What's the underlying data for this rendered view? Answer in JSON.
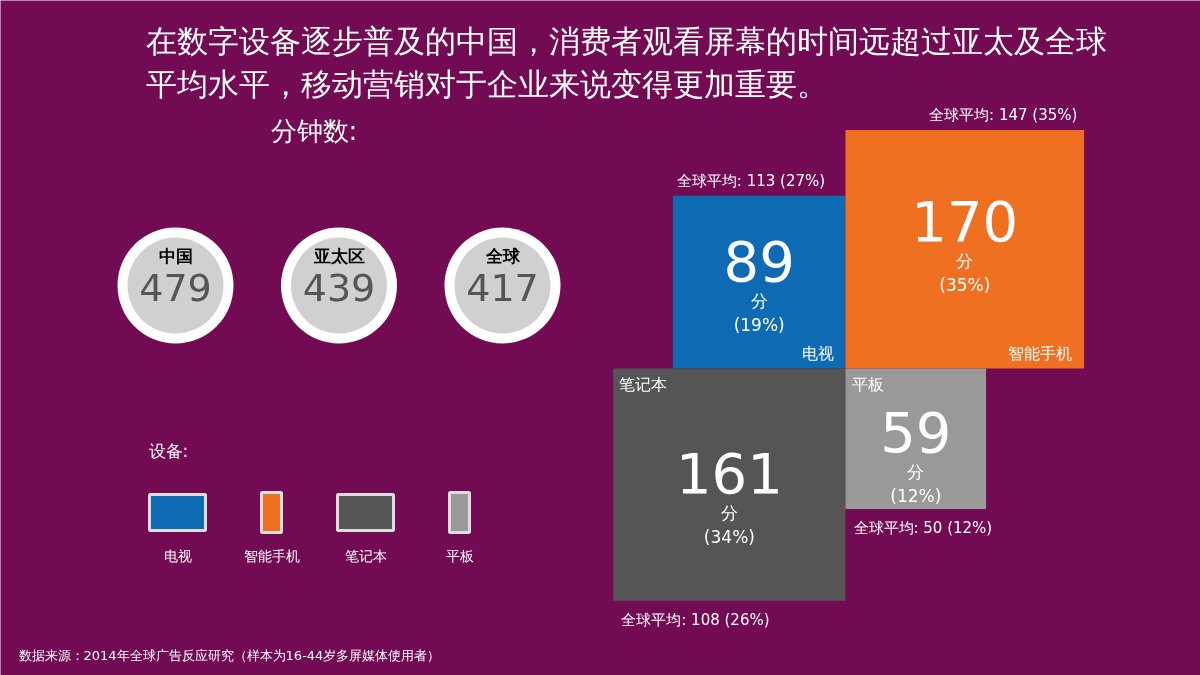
{
  "chart_data": [
    {
      "type": "other",
      "title": "在数字设备逐步普及的中国，消费者观看屏幕的时间远超过亚太及全球平均水平，移动营销对于企业来说变得更加重要。",
      "subtitle": "分钟数:",
      "categories": [
        "中国",
        "亚太区",
        "全球"
      ],
      "values": [
        479,
        439,
        417
      ],
      "data_labels": true
    },
    {
      "type": "other",
      "categories": [
        "电视",
        "智能手机",
        "笔记本",
        "平板"
      ],
      "values": [
        89,
        170,
        161,
        59
      ],
      "value_labels": [
        "89\n分\n(19%)",
        "170\n分\n(35%)",
        "161\n分\n(34%)",
        "59\n分\n(12%)"
      ],
      "colors": [
        "#0f6ab4",
        "#f07022",
        "#555555",
        "#999999"
      ],
      "legend_title": "设备:",
      "annotations": [
        "全球平均:  113 (27%)",
        "全球平均:  147 (35%)",
        "全球平均:  108 (26%)",
        "全球平均:  50 (12%)",
        "数据来源：2014年全球广告反应研究（样本为16-44岁多屏媒体使用者）"
      ]
    }
  ]
}
